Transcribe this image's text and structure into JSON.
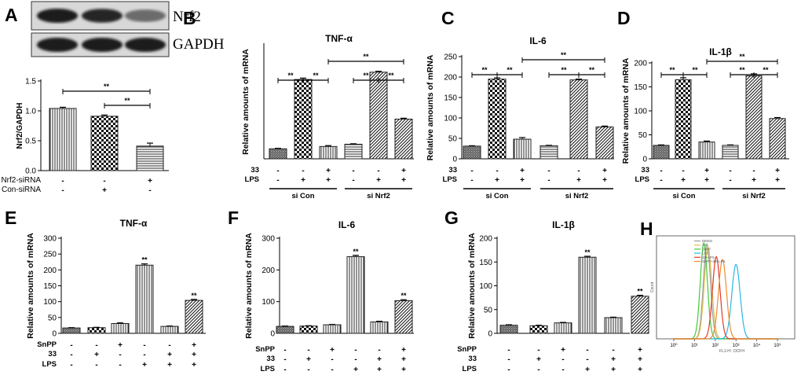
{
  "panel_labels": {
    "A": "A",
    "B": "B",
    "C": "C",
    "D": "D",
    "E": "E",
    "F": "F",
    "G": "G",
    "H": "H"
  },
  "blot": {
    "bands": [
      "Nrf2",
      "GAPDH"
    ],
    "intensities": {
      "Nrf2": [
        1.0,
        0.9,
        0.45
      ],
      "GAPDH": [
        1.0,
        1.0,
        1.0
      ]
    }
  },
  "colors": {
    "axis": "#000000",
    "bar_edge": "#222222",
    "blot_bg": "#d8d8d8",
    "band": "#1a1a1a"
  },
  "chart_data": [
    {
      "id": "A",
      "type": "bar",
      "title": "",
      "ylabel": "Nrf2/GAPDH",
      "ylim": [
        0,
        1.5
      ],
      "yticks": [
        "0.0",
        "0.5",
        "1.0",
        "1.5"
      ],
      "values": [
        1.04,
        0.91,
        0.41
      ],
      "errors": [
        0.02,
        0.02,
        0.05
      ],
      "patterns": [
        "vert",
        "check",
        "horiz"
      ],
      "conditions": [
        {
          "label": "Nrf2-siRNA",
          "marks": [
            "-",
            "-",
            "+"
          ]
        },
        {
          "label": "Con-siRNA",
          "marks": [
            "-",
            "+",
            "-"
          ]
        }
      ],
      "groups": [],
      "brackets": [
        {
          "from": 0,
          "to": 2,
          "text": "**"
        },
        {
          "from": 1,
          "to": 2,
          "text": "**"
        }
      ],
      "stars": [
        "",
        "",
        ""
      ]
    },
    {
      "id": "B",
      "type": "bar",
      "title": "TNF-α",
      "ylabel": "Relative amounts of mRNA",
      "ylim": [
        0,
        250
      ],
      "yticks": [],
      "values": [
        22,
        174,
        27,
        32,
        190,
        87
      ],
      "errors": [
        1,
        3,
        2,
        1,
        2,
        2
      ],
      "patterns": [
        "dense",
        "check",
        "vert",
        "horiz",
        "diag",
        "diag"
      ],
      "conditions": [
        {
          "label": "33",
          "marks": [
            "-",
            "-",
            "+",
            "-",
            "-",
            "+"
          ]
        },
        {
          "label": "LPS",
          "marks": [
            "-",
            "+",
            "+",
            "-",
            "+",
            "+"
          ]
        }
      ],
      "groups": [
        {
          "label": "si Con",
          "from": 0,
          "to": 2
        },
        {
          "label": "si Nrf2",
          "from": 3,
          "to": 5
        }
      ],
      "brackets": [
        {
          "from": 0,
          "to": 1,
          "text": "**"
        },
        {
          "from": 1,
          "to": 2,
          "text": "**"
        },
        {
          "from": 3,
          "to": 4,
          "text": "**"
        },
        {
          "from": 4,
          "to": 5,
          "text": "**"
        },
        {
          "from": 2,
          "to": 5,
          "text": "**"
        }
      ],
      "stars": [
        "",
        "",
        "",
        "",
        "",
        ""
      ]
    },
    {
      "id": "C",
      "type": "bar",
      "title": "IL-6",
      "ylabel": "Relative amounts of mRNA",
      "ylim": [
        0,
        250
      ],
      "yticks": [
        "0",
        "50",
        "100",
        "150",
        "200",
        "250"
      ],
      "values": [
        31,
        195,
        48,
        32,
        193,
        78
      ],
      "errors": [
        1,
        3,
        4,
        1,
        2,
        2
      ],
      "patterns": [
        "dense",
        "check",
        "vert",
        "horiz",
        "diag",
        "diag"
      ],
      "conditions": [
        {
          "label": "33",
          "marks": [
            "-",
            "-",
            "+",
            "-",
            "-",
            "+"
          ]
        },
        {
          "label": "LPS",
          "marks": [
            "-",
            "+",
            "+",
            "-",
            "+",
            "+"
          ]
        }
      ],
      "groups": [
        {
          "label": "si Con",
          "from": 0,
          "to": 2
        },
        {
          "label": "si Nrf2",
          "from": 3,
          "to": 5
        }
      ],
      "brackets": [
        {
          "from": 0,
          "to": 1,
          "text": "**"
        },
        {
          "from": 1,
          "to": 2,
          "text": "**"
        },
        {
          "from": 3,
          "to": 4,
          "text": "**"
        },
        {
          "from": 4,
          "to": 5,
          "text": "**"
        },
        {
          "from": 2,
          "to": 5,
          "text": "**"
        }
      ],
      "stars": [
        "",
        "",
        "",
        "",
        "",
        ""
      ]
    },
    {
      "id": "D",
      "type": "bar",
      "title": "IL-1β",
      "ylabel": "Relative amounts of mRNA",
      "ylim": [
        0,
        200
      ],
      "yticks": [
        "0",
        "50",
        "100",
        "150",
        "200"
      ],
      "values": [
        28,
        165,
        35,
        28,
        173,
        84
      ],
      "errors": [
        1,
        4,
        2,
        1,
        4,
        2
      ],
      "patterns": [
        "dense",
        "check",
        "vert",
        "horiz",
        "diag",
        "diag"
      ],
      "conditions": [
        {
          "label": "33",
          "marks": [
            "-",
            "-",
            "+",
            "-",
            "-",
            "+"
          ]
        },
        {
          "label": "LPS",
          "marks": [
            "-",
            "+",
            "+",
            "-",
            "+",
            "+"
          ]
        }
      ],
      "groups": [
        {
          "label": "si Con",
          "from": 0,
          "to": 2
        },
        {
          "label": "si Nrf2",
          "from": 3,
          "to": 5
        }
      ],
      "brackets": [
        {
          "from": 0,
          "to": 1,
          "text": "**"
        },
        {
          "from": 1,
          "to": 2,
          "text": "**"
        },
        {
          "from": 3,
          "to": 4,
          "text": "**"
        },
        {
          "from": 4,
          "to": 5,
          "text": "**"
        },
        {
          "from": 2,
          "to": 5,
          "text": "**"
        }
      ],
      "stars": [
        "",
        "",
        "",
        "",
        "",
        ""
      ]
    },
    {
      "id": "E",
      "type": "bar",
      "title": "TNF-α",
      "ylabel": "Relative amounts of mRNA",
      "ylim": [
        0,
        300
      ],
      "yticks": [
        "0",
        "50",
        "100",
        "150",
        "200",
        "250",
        "300"
      ],
      "values": [
        17,
        18,
        31,
        215,
        22,
        104
      ],
      "errors": [
        1,
        1,
        2,
        4,
        1,
        3
      ],
      "patterns": [
        "dense",
        "check",
        "vert",
        "vert",
        "vert",
        "diag"
      ],
      "conditions": [
        {
          "label": "SnPP",
          "marks": [
            "-",
            "-",
            "+",
            "-",
            "-",
            "+"
          ]
        },
        {
          "label": "33",
          "marks": [
            "-",
            "+",
            "-",
            "-",
            "+",
            "+"
          ]
        },
        {
          "label": "LPS",
          "marks": [
            "-",
            "-",
            "-",
            "+",
            "+",
            "+"
          ]
        }
      ],
      "groups": [],
      "brackets": [],
      "stars": [
        "",
        "",
        "",
        "**",
        "",
        "**"
      ]
    },
    {
      "id": "F",
      "type": "bar",
      "title": "IL-6",
      "ylabel": "Relative amounts of mRNA",
      "ylim": [
        0,
        300
      ],
      "yticks": [
        "0",
        "100",
        "200",
        "300"
      ],
      "values": [
        22,
        23,
        27,
        242,
        36,
        103
      ],
      "errors": [
        1,
        1,
        1,
        4,
        2,
        3
      ],
      "patterns": [
        "dense",
        "check",
        "vert",
        "vert",
        "vert",
        "diag"
      ],
      "conditions": [
        {
          "label": "SnPP",
          "marks": [
            "-",
            "-",
            "+",
            "-",
            "-",
            "+"
          ]
        },
        {
          "label": "33",
          "marks": [
            "-",
            "+",
            "-",
            "-",
            "+",
            "+"
          ]
        },
        {
          "label": "LPS",
          "marks": [
            "-",
            "-",
            "-",
            "+",
            "+",
            "+"
          ]
        }
      ],
      "groups": [],
      "brackets": [],
      "stars": [
        "",
        "",
        "",
        "**",
        "",
        "**"
      ]
    },
    {
      "id": "G",
      "type": "bar",
      "title": "IL-1β",
      "ylabel": "Relative amounts of mRNA",
      "ylim": [
        0,
        200
      ],
      "yticks": [
        "0",
        "50",
        "100",
        "150",
        "200"
      ],
      "values": [
        17,
        16,
        22,
        160,
        33,
        78
      ],
      "errors": [
        1,
        1,
        1,
        2,
        1,
        2
      ],
      "patterns": [
        "dense",
        "check",
        "vert",
        "vert",
        "vert",
        "diag"
      ],
      "conditions": [
        {
          "label": "SnPP",
          "marks": [
            "-",
            "-",
            "+",
            "-",
            "-",
            "+"
          ]
        },
        {
          "label": "33",
          "marks": [
            "-",
            "+",
            "-",
            "-",
            "+",
            "+"
          ]
        },
        {
          "label": "LPS",
          "marks": [
            "-",
            "-",
            "-",
            "+",
            "+",
            "+"
          ]
        }
      ],
      "groups": [],
      "brackets": [],
      "stars": [
        "",
        "",
        "",
        "**",
        "",
        "**"
      ]
    },
    {
      "id": "H",
      "type": "line",
      "title": "",
      "xlabel": "FL1-H:: DCFH",
      "ylabel": "Count",
      "xscale": "log",
      "xlim": [
        1,
        100000
      ],
      "xticks": [
        "10⁰",
        "10¹",
        "10²",
        "10³",
        "10⁴",
        "10⁵"
      ],
      "series": [
        {
          "name": "DMSO",
          "color": "#9a9a9a",
          "peak": 1.6,
          "width": 0.17,
          "height": 0.98
        },
        {
          "name": "33",
          "color": "#e0c14a",
          "peak": 1.65,
          "width": 0.18,
          "height": 0.95
        },
        {
          "name": "SnPP",
          "color": "#44c838",
          "peak": 1.45,
          "width": 0.17,
          "height": 0.99
        },
        {
          "name": "LPS",
          "color": "#26b8e6",
          "peak": 3.0,
          "width": 0.2,
          "height": 0.77
        },
        {
          "name": "33+LPS",
          "color": "#e23a2a",
          "peak": 2.05,
          "width": 0.18,
          "height": 0.85
        },
        {
          "name": "SnPP+33+LPS",
          "color": "#f08a2e",
          "peak": 2.35,
          "width": 0.19,
          "height": 0.82
        }
      ]
    }
  ]
}
